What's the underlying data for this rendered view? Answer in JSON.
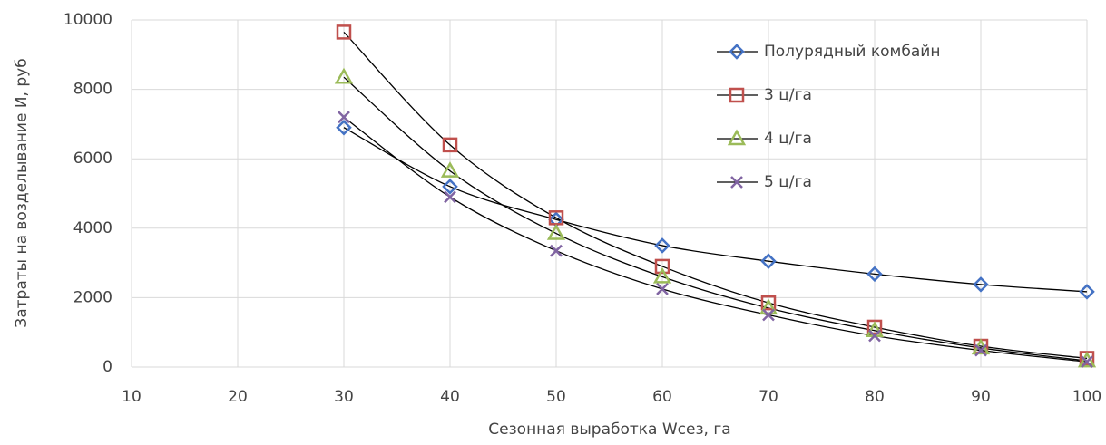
{
  "chart_data": {
    "type": "line",
    "x_label": "Сезонная выработка Wсез, га",
    "y_label": "Затраты на возделывание И, руб",
    "x": [
      30,
      40,
      50,
      60,
      70,
      80,
      90,
      100
    ],
    "xlim": [
      10,
      100
    ],
    "xticks": [
      10,
      20,
      30,
      40,
      50,
      60,
      70,
      80,
      90,
      100
    ],
    "ylim": [
      0,
      10000
    ],
    "yticks": [
      0,
      2000,
      4000,
      6000,
      8000,
      10000
    ],
    "grid": true,
    "legend": "top-right",
    "line_color": "#000000",
    "series": [
      {
        "name": "Полурядный комбайн",
        "color": "#4472c4",
        "marker": "diamond",
        "values": [
          6900,
          5200,
          4250,
          3500,
          3050,
          2680,
          2380,
          2170
        ]
      },
      {
        "name": "3 ц/га",
        "color": "#c0504d",
        "marker": "square",
        "values": [
          9650,
          6400,
          4300,
          2900,
          1850,
          1150,
          600,
          250
        ]
      },
      {
        "name": "4 ц/га",
        "color": "#9bbb59",
        "marker": "triangle",
        "values": [
          8350,
          5650,
          3850,
          2600,
          1700,
          1050,
          550,
          180
        ]
      },
      {
        "name": "5 ц/га",
        "color": "#8064a2",
        "marker": "x",
        "values": [
          7200,
          4900,
          3350,
          2250,
          1500,
          900,
          480,
          150
        ]
      }
    ]
  }
}
